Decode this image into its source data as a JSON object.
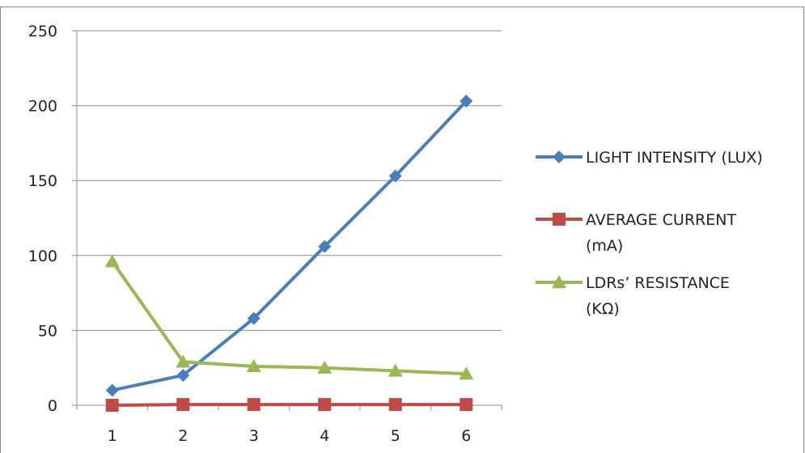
{
  "chart_data": {
    "type": "line",
    "title": "",
    "xlabel": "",
    "ylabel": "",
    "categories": [
      "1",
      "2",
      "3",
      "4",
      "5",
      "6"
    ],
    "ylim": [
      0,
      250
    ],
    "yticks": [
      "0",
      "50",
      "100",
      "150",
      "200",
      "250"
    ],
    "grid": "horizontal",
    "legend_position": "right",
    "series": [
      {
        "name": "LIGHT INTENSITY (LUX)",
        "legend_lines": [
          "LIGHT INTENSITY (LUX)"
        ],
        "marker": "diamond",
        "color": "#4a7ebb",
        "values": [
          10,
          20,
          58,
          106,
          153,
          203
        ]
      },
      {
        "name": "AVERAGE CURRENT (mA)",
        "legend_lines": [
          "AVERAGE CURRENT",
          "(mA)"
        ],
        "marker": "square",
        "color": "#be4b48",
        "values": [
          0,
          0.5,
          0.5,
          0.5,
          0.5,
          0.5
        ]
      },
      {
        "name": "LDRs’ RESISTANCE (KΩ)",
        "legend_lines": [
          "LDRs’ RESISTANCE",
          "(KΩ)"
        ],
        "marker": "triangle",
        "color": "#98b954",
        "values": [
          96,
          29,
          26,
          25,
          23,
          21
        ]
      }
    ]
  }
}
